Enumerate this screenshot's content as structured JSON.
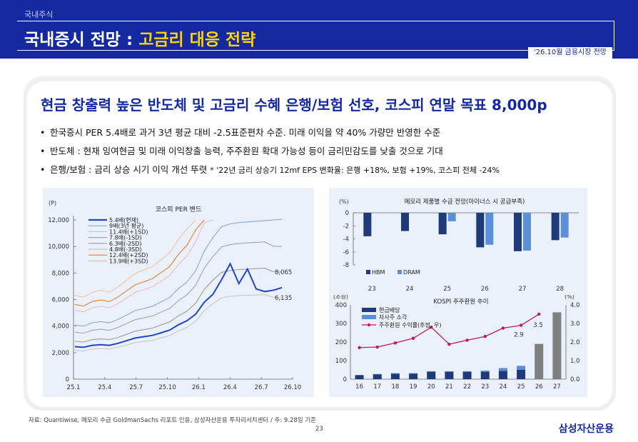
{
  "header": {
    "section": "국내주식",
    "title_main": "국내증시 전망 : ",
    "title_highlight": "고금리 대응 전략",
    "date_badge": "'26.10월 금융시장 전망"
  },
  "headline": "현금 창출력 높은 반도체 및 고금리 수혜 은행/보험 선호, 코스피 연말 목표 8,000p",
  "bullets": [
    {
      "text": "한국증시 PER 5.4배로 과거 3년 평균 대비 -2.5표준편차 수준. 미래 이익을 약 40% 가량만 반영한 수준",
      "note": ""
    },
    {
      "text": "반도체 : 현재 잉여현금 및 미래 이익창출 능력, 주주환원 확대 가능성 등이 금리민감도를 낮출 것으로 기대",
      "note": ""
    },
    {
      "text": "은행/보험 : 금리 상승 시기 이익 개선 뚜렷  ",
      "note": "* '22년 금리 상승기 12mf EPS 변화율: 은행 +18%, 보험 +19%, 코스피 전체 -24%"
    }
  ],
  "chart_data": [
    {
      "type": "line",
      "title": "코스피 PER 밴드",
      "ylabel": "(P)",
      "ylim": [
        0,
        12000
      ],
      "yticks": [
        "0",
        "2,000",
        "4,000",
        "6,000",
        "8,000",
        "10,000",
        "12,000"
      ],
      "xticks": [
        "25.1",
        "25.4",
        "25.7",
        "25.10",
        "26.1",
        "26.4",
        "26.7",
        "26.10"
      ],
      "legend": "top-left",
      "annotations": [
        "8,065",
        "6,135"
      ],
      "series": [
        {
          "name": "5.4배(현재)",
          "color": "#1f47c7",
          "bold": true,
          "values": [
            2450,
            2400,
            2550,
            2600,
            2550,
            2700,
            2900,
            3100,
            3200,
            3300,
            3500,
            3700,
            4100,
            4400,
            4900,
            5800,
            6400,
            7500,
            8700,
            7200,
            8300,
            6800,
            6600,
            6700,
            6900
          ]
        },
        {
          "name": "9배(3년 평균)",
          "color": "#8ea6d8",
          "values": [
            4080,
            4000,
            4250,
            4330,
            4250,
            4500,
            4830,
            5170,
            5330,
            5500,
            5830,
            6170,
            6830,
            7330,
            8170,
            9670,
            10670,
            11500,
            11700,
            11800,
            11850,
            11900,
            11950,
            12000,
            12050
          ]
        },
        {
          "name": "11.4배(+1SD)",
          "color": "#f2b8c6",
          "values": [
            5180,
            5070,
            5380,
            5490,
            5380,
            5700,
            6120,
            6550,
            6750,
            6970,
            7390,
            7820,
            8650,
            9290,
            10350,
            11800,
            12000
          ]
        },
        {
          "name": "7.8배(-1SD)",
          "color": "#a5a5a5",
          "values": [
            3540,
            3470,
            3680,
            3760,
            3680,
            3900,
            4190,
            4480,
            4620,
            4770,
            5060,
            5340,
            5920,
            6360,
            7080,
            8380,
            9250,
            9970,
            10140,
            10230,
            10270,
            10310,
            10350,
            10020,
            10000
          ]
        },
        {
          "name": "6.3배(-2SD)",
          "color": "#9c9c9c",
          "values": [
            2860,
            2800,
            2980,
            3030,
            2980,
            3150,
            3380,
            3620,
            3730,
            3850,
            4090,
            4320,
            4780,
            5130,
            5720,
            6770,
            7470,
            8050,
            8190,
            8260,
            8300,
            8330,
            8360,
            8100,
            8065
          ]
        },
        {
          "name": "4.8배(-3SD)",
          "color": "#c8c8c8",
          "values": [
            2180,
            2130,
            2270,
            2310,
            2270,
            2400,
            2580,
            2760,
            2840,
            2930,
            3110,
            3290,
            3640,
            3910,
            4360,
            5160,
            5690,
            6130,
            6240,
            6290,
            6320,
            6340,
            6370,
            6170,
            6135
          ]
        },
        {
          "name": "12.4배(+2SD)",
          "color": "#f07a30",
          "values": [
            5630,
            5510,
            5850,
            5970,
            5850,
            6200,
            6660,
            7120,
            7340,
            7580,
            8040,
            8500,
            9410,
            10100,
            11250,
            12000
          ]
        },
        {
          "name": "13.9배(+3SD)",
          "color": "#f4c0a0",
          "values": [
            6310,
            6180,
            6560,
            6690,
            6560,
            6950,
            7460,
            7980,
            8230,
            8490,
            9010,
            9530,
            10550,
            11320,
            12000
          ]
        }
      ]
    },
    {
      "type": "bar",
      "title": "메모리 제품별 수급 전망(마이너스 시 공급부족)",
      "ylabel": "(%)",
      "ylim": [
        -8,
        0
      ],
      "yticks": [
        "0",
        "-2",
        "-4",
        "-6",
        "-8"
      ],
      "categories": [
        "23",
        "24",
        "25",
        "26",
        "27",
        "28"
      ],
      "legend": "bottom-left",
      "series": [
        {
          "name": "HBM",
          "color": "#1e3a78",
          "values": [
            -3.6,
            -2.8,
            -3.3,
            -5.3,
            -5.9,
            -4.2
          ]
        },
        {
          "name": "DRAM",
          "color": "#5b8fd9",
          "values": [
            null,
            null,
            -1.3,
            -4.9,
            -5.8,
            -3.8
          ]
        }
      ]
    },
    {
      "type": "bar",
      "title": "KOSPI 주주환원 추이",
      "ylabel": "(조원)",
      "y2label": "(%)",
      "ylim": [
        0,
        400
      ],
      "y2lim": [
        0,
        4.0
      ],
      "yticks": [
        "0",
        "100",
        "200",
        "300",
        "400"
      ],
      "y2ticks": [
        "0.0",
        "1.0",
        "2.0",
        "3.0",
        "4.0"
      ],
      "categories": [
        "16",
        "17",
        "18",
        "19",
        "20",
        "21",
        "22",
        "23",
        "24",
        "25",
        "26",
        "27"
      ],
      "legend": "top-left",
      "annotations": [
        "2.9",
        "3.5"
      ],
      "series": [
        {
          "name": "현금배당",
          "color": "#1e3a78",
          "values": [
            22,
            26,
            30,
            30,
            40,
            40,
            40,
            40,
            45,
            50,
            null,
            null
          ]
        },
        {
          "name": "자사주 소각",
          "color": "#5b8fd9",
          "values": [
            0,
            2,
            2,
            2,
            3,
            3,
            3,
            6,
            15,
            22,
            null,
            null
          ]
        },
        {
          "name": "주주환원 수익률(추정, 우)",
          "color": "#c0185d",
          "type": "line",
          "values": [
            1.7,
            1.73,
            1.95,
            2.2,
            2.8,
            1.88,
            2.1,
            2.3,
            2.75,
            2.9,
            3.5,
            null
          ]
        },
        {
          "name": "",
          "color": "#7f7f7f",
          "values": [
            null,
            null,
            null,
            null,
            null,
            null,
            null,
            null,
            null,
            null,
            190,
            360
          ]
        }
      ]
    }
  ],
  "footer": {
    "source": "자료: Quantiwise, 메모리 수급 GoldmanSachs 리포트 인용, 삼성자산운용 투자리서치센터 / 주: 9.28일 기준",
    "page": "23",
    "brand": "삼성자산운용"
  }
}
